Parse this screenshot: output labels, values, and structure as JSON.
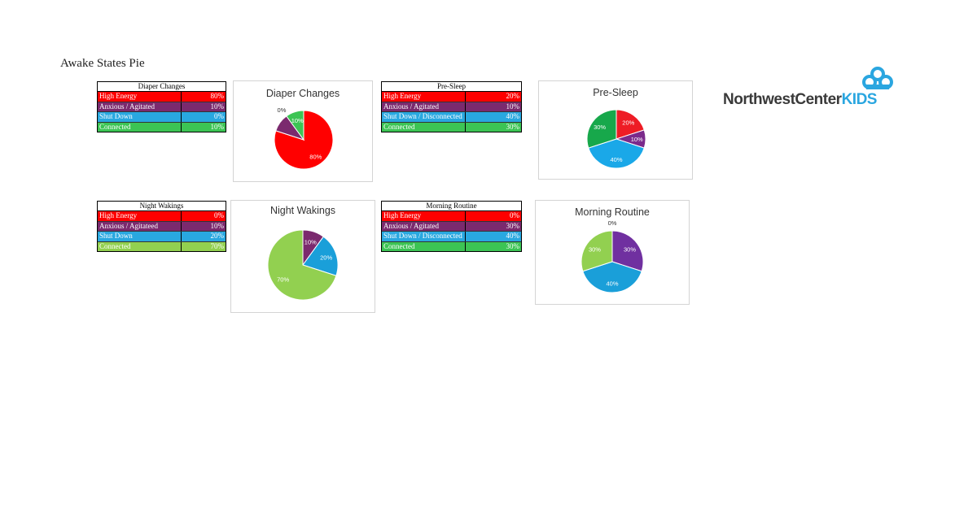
{
  "page_title": "Awake States Pie",
  "logo": {
    "text_dark": "NorthwestCenter",
    "text_accent": "KIDS",
    "accent_color": "#2aa6e0"
  },
  "chart_data": [
    {
      "type": "pie",
      "title": "Diaper Changes",
      "table_header": "Diaper Changes",
      "categories": [
        "High Energy",
        "Anxious / Agitated",
        "Shut Down",
        "Connected"
      ],
      "table_values": [
        "80%",
        "10%",
        "0%",
        "10%"
      ],
      "values": [
        80,
        10,
        0,
        10
      ],
      "slice_labels": [
        "80%",
        "",
        "0%",
        "10%"
      ],
      "colors": [
        "#ff0000",
        "#7b2a6e",
        "#29a8e0",
        "#3cc454"
      ],
      "row_colors": [
        "#ff0000",
        "#7b2a6e",
        "#29a8e0",
        "#3cc454"
      ]
    },
    {
      "type": "pie",
      "title": "Pre-Sleep",
      "table_header": "Pre-Sleep",
      "categories": [
        "High Energy",
        "Anxious / Agitated",
        "Shut Down / Disconnected",
        "Connected"
      ],
      "table_values": [
        "20%",
        "10%",
        "40%",
        "30%"
      ],
      "values": [
        20,
        10,
        40,
        30
      ],
      "slice_labels": [
        "20%",
        "10%",
        "40%",
        "30%"
      ],
      "colors": [
        "#ee1c25",
        "#7b2a8b",
        "#1aa8e8",
        "#17a84b"
      ],
      "row_colors": [
        "#ff0000",
        "#7b2a6e",
        "#29a8e0",
        "#3cc454"
      ]
    },
    {
      "type": "pie",
      "title": "Night Wakings",
      "table_header": "Night Wakings",
      "categories": [
        "High Energy",
        "Anxious / Agitateed",
        "Shut Down",
        "Connected"
      ],
      "table_values": [
        "0%",
        "10%",
        "20%",
        "70%"
      ],
      "values": [
        0,
        10,
        20,
        70
      ],
      "slice_labels": [
        "",
        "10%",
        "20%",
        "70%"
      ],
      "colors": [
        "#ff0000",
        "#7b2a6e",
        "#1a9fd9",
        "#92d050"
      ],
      "row_colors": [
        "#ff0000",
        "#7b2a6e",
        "#29a8e0",
        "#92d050"
      ]
    },
    {
      "type": "pie",
      "title": "Morning Routine",
      "table_header": "Morning Routine",
      "categories": [
        "High Energy",
        "Anxious / Agitated",
        "Shut Down / Disconnected",
        "Connected"
      ],
      "table_values": [
        "0%",
        "30%",
        "40%",
        "30%"
      ],
      "values": [
        0,
        30,
        40,
        30
      ],
      "slice_labels": [
        "0%",
        "30%",
        "40%",
        "30%"
      ],
      "colors": [
        "#ff0000",
        "#7030a0",
        "#1a9fd9",
        "#92d050"
      ],
      "row_colors": [
        "#ff0000",
        "#7b2a6e",
        "#29a8e0",
        "#3cc454"
      ]
    }
  ]
}
